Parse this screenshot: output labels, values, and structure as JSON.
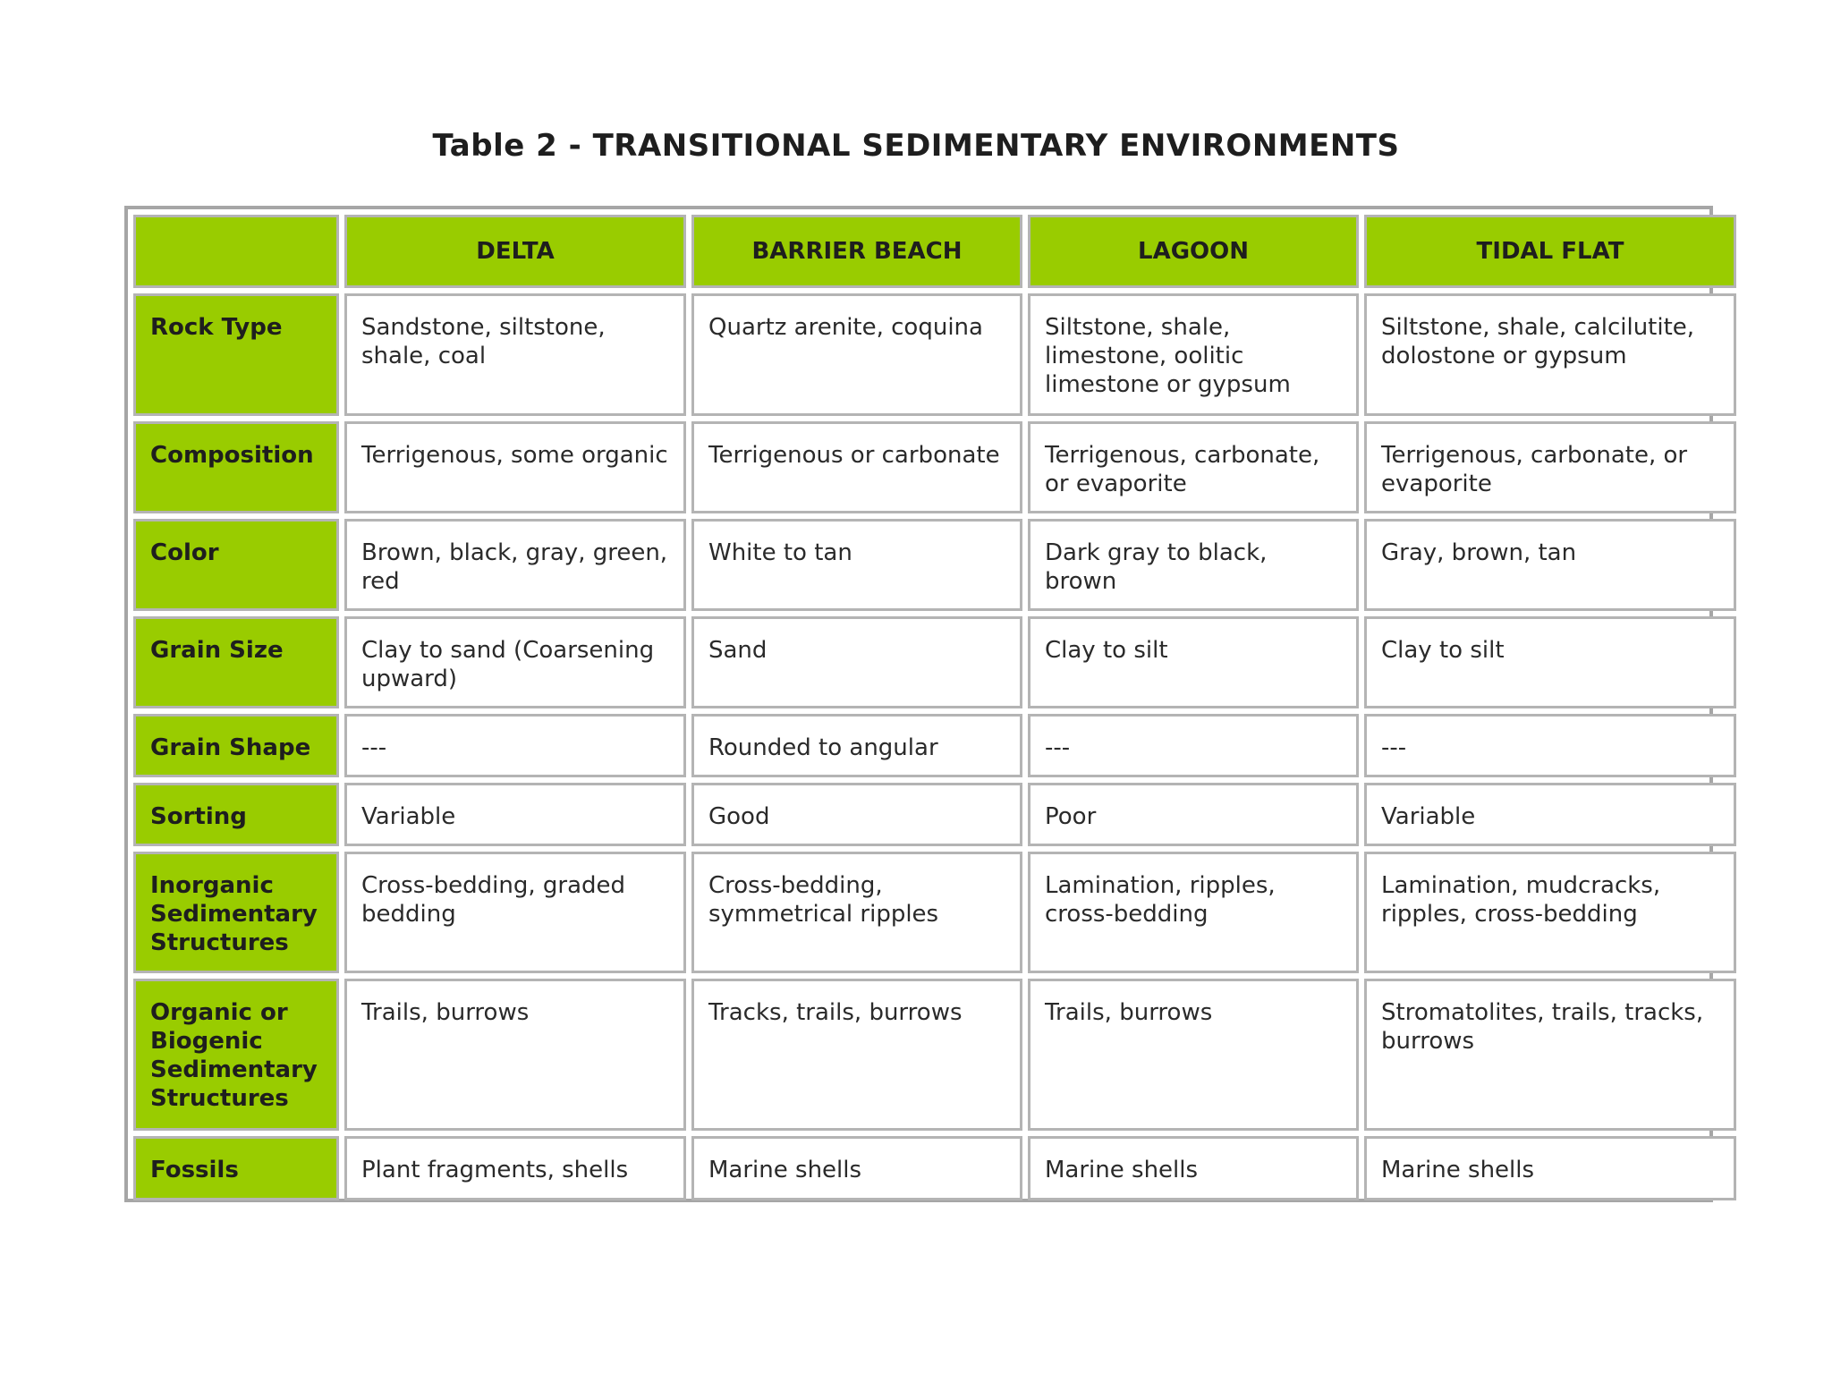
{
  "title": "Table 2 - TRANSITIONAL SEDIMENTARY ENVIRONMENTS",
  "colors": {
    "header_green": "#99cc00",
    "border_gray": "#b4b4b4",
    "frame_gray": "#a6a6a6"
  },
  "table": {
    "columns": [
      "",
      "DELTA",
      "BARRIER BEACH",
      "LAGOON",
      "TIDAL FLAT"
    ],
    "rows": [
      {
        "label": "Rock Type",
        "cells": [
          "Sandstone, siltstone, shale, coal",
          "Quartz arenite, coquina",
          "Siltstone, shale, limestone, oolitic limestone or gypsum",
          "Siltstone, shale, calcilutite, dolostone or gypsum"
        ]
      },
      {
        "label": "Composition",
        "cells": [
          "Terrigenous, some organic",
          "Terrigenous or carbonate",
          "Terrigenous, carbonate, or evaporite",
          "Terrigenous, carbonate, or evaporite"
        ]
      },
      {
        "label": "Color",
        "cells": [
          "Brown, black, gray, green, red",
          "White to tan",
          "Dark gray to black, brown",
          "Gray, brown, tan"
        ]
      },
      {
        "label": "Grain Size",
        "cells": [
          "Clay to sand (Coarsening upward)",
          "Sand",
          "Clay to silt",
          "Clay to silt"
        ]
      },
      {
        "label": "Grain Shape",
        "cells": [
          "---",
          "Rounded to angular",
          "---",
          "---"
        ]
      },
      {
        "label": "Sorting",
        "cells": [
          "Variable",
          "Good",
          "Poor",
          "Variable"
        ]
      },
      {
        "label": "Inorganic Sedimentary Structures",
        "cells": [
          "Cross-bedding, graded bedding",
          "Cross-bedding, symmetrical ripples",
          "Lamination, ripples, cross-bedding",
          "Lamination, mudcracks, ripples, cross-bedding"
        ]
      },
      {
        "label": "Organic or Biogenic Sedimentary Structures",
        "cells": [
          "Trails, burrows",
          "Tracks, trails, burrows",
          "Trails, burrows",
          "Stromatolites, trails, tracks, burrows"
        ]
      },
      {
        "label": "Fossils",
        "cells": [
          "Plant fragments, shells",
          "Marine shells",
          "Marine shells",
          "Marine shells"
        ]
      }
    ]
  }
}
